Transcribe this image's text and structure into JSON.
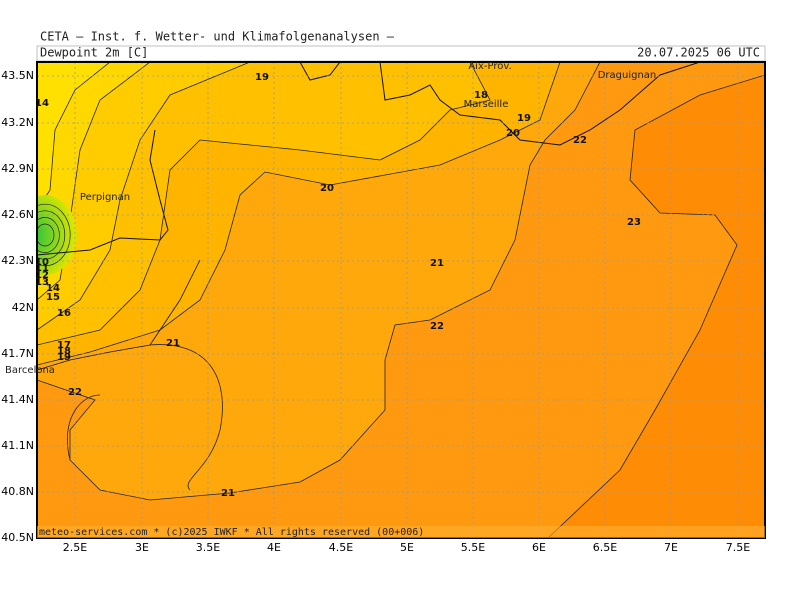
{
  "header": {
    "title": "CETA — Inst. f. Wetter- und Klimafolgenanalysen —",
    "variable": "Dewpoint 2m [C]",
    "valid_time": "20.07.2025 06 UTC"
  },
  "map": {
    "lat_labels": [
      "43.5N",
      "43.2N",
      "42.9N",
      "42.6N",
      "42.3N",
      "42N",
      "41.7N",
      "41.4N",
      "41.1N",
      "40.8N",
      "40.5N"
    ],
    "lon_labels": [
      "2.5E",
      "3E",
      "3.5E",
      "4E",
      "4.5E",
      "5E",
      "5.5E",
      "6E",
      "6.5E",
      "7E",
      "7.5E"
    ],
    "places": [
      "Aix-Prov.",
      "Marseille",
      "Draguignan",
      "Perpignan",
      "Barcelona"
    ],
    "contour_labels": [
      19,
      14,
      18,
      19,
      20,
      22,
      20,
      23,
      21,
      10,
      11,
      12,
      13,
      14,
      15,
      16,
      22,
      21,
      17,
      18,
      19,
      22,
      21
    ]
  },
  "footer": "meteo-services.com * (c)2025 IWKF * All rights reserved (00+006)"
}
